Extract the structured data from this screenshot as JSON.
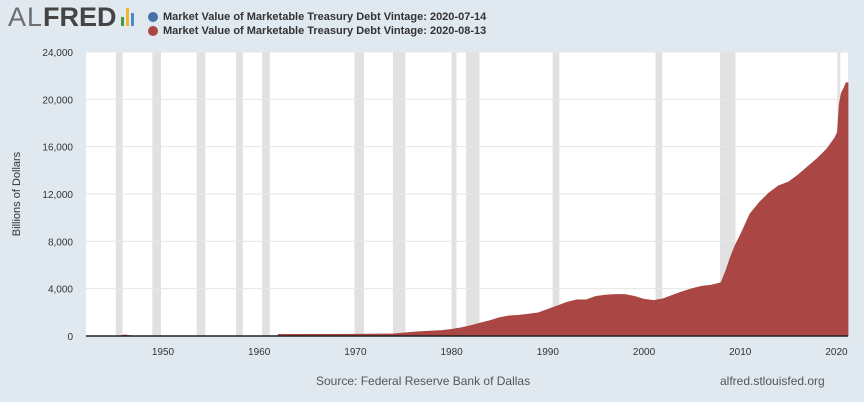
{
  "logo": {
    "text_al": "AL",
    "text_fred": "FRED",
    "bar_colors": [
      "#4c9a43",
      "#f0b62d",
      "#4c8bc9"
    ]
  },
  "legend": [
    {
      "label": "Market Value of Marketable Treasury Debt Vintage: 2020-07-14",
      "color": "#4572a7"
    },
    {
      "label": "Market Value of Marketable Treasury Debt Vintage: 2020-08-13",
      "color": "#aa4643"
    }
  ],
  "source": "Source: Federal Reserve Bank of Dallas",
  "site": "alfred.stlouisfed.org",
  "chart_data": {
    "type": "area",
    "ylabel": "Billions of Dollars",
    "ylim": [
      0,
      24000
    ],
    "yticks": [
      0,
      4000,
      8000,
      12000,
      16000,
      20000,
      24000
    ],
    "ytick_labels": [
      "0",
      "4,000",
      "8,000",
      "12,000",
      "16,000",
      "20,000",
      "24,000"
    ],
    "xlim": [
      1942,
      2021.2
    ],
    "xticks": [
      1950,
      1960,
      1970,
      1980,
      1990,
      2000,
      2010,
      2020
    ],
    "xtick_labels": [
      "1950",
      "1960",
      "1970",
      "1980",
      "1990",
      "2000",
      "2010",
      "2020"
    ],
    "grid": true,
    "recessions": [
      [
        1945.1,
        1945.8
      ],
      [
        1948.9,
        1949.8
      ],
      [
        1953.5,
        1954.4
      ],
      [
        1957.6,
        1958.3
      ],
      [
        1960.3,
        1961.1
      ],
      [
        1969.9,
        1970.9
      ],
      [
        1973.9,
        1975.2
      ],
      [
        1980.0,
        1980.5
      ],
      [
        1981.5,
        1982.9
      ],
      [
        1990.5,
        1991.2
      ],
      [
        2001.2,
        2001.9
      ],
      [
        2007.9,
        2009.5
      ],
      [
        2020.1,
        2020.4
      ]
    ],
    "series": [
      {
        "name": "Market Value of Marketable Treasury Debt Vintage: 2020-08-13",
        "color": "#aa4643",
        "x": [
          1942.0,
          1945.5,
          1946.0,
          1946.5,
          1947.0,
          1961.9,
          1962.0,
          1970.0,
          1974.0,
          1975.0,
          1976.0,
          1977.0,
          1978.0,
          1979.0,
          1980.0,
          1981.0,
          1982.0,
          1983.0,
          1984.0,
          1985.0,
          1986.0,
          1987.0,
          1988.0,
          1989.0,
          1990.0,
          1991.0,
          1992.0,
          1993.0,
          1994.0,
          1995.0,
          1996.0,
          1997.0,
          1998.0,
          1999.0,
          2000.0,
          2001.0,
          2002.0,
          2003.0,
          2004.0,
          2005.0,
          2006.0,
          2007.0,
          2008.0,
          2008.5,
          2009.0,
          2009.5,
          2010.0,
          2011.0,
          2012.0,
          2013.0,
          2014.0,
          2015.0,
          2016.0,
          2017.0,
          2018.0,
          2019.0,
          2019.8,
          2020.1,
          2020.3,
          2020.5,
          2020.8,
          2021.0,
          2021.2
        ],
        "values": [
          0,
          0,
          90,
          40,
          0,
          0,
          140,
          150,
          180,
          250,
          320,
          380,
          420,
          460,
          560,
          700,
          880,
          1100,
          1300,
          1550,
          1700,
          1750,
          1850,
          1950,
          2250,
          2550,
          2850,
          3050,
          3050,
          3350,
          3450,
          3500,
          3500,
          3350,
          3100,
          3000,
          3150,
          3450,
          3750,
          4000,
          4200,
          4300,
          4500,
          5500,
          6700,
          7700,
          8500,
          10300,
          11300,
          12100,
          12700,
          13000,
          13600,
          14300,
          15000,
          15800,
          16700,
          17200,
          19600,
          20500,
          21000,
          21400,
          21400
        ]
      }
    ]
  }
}
